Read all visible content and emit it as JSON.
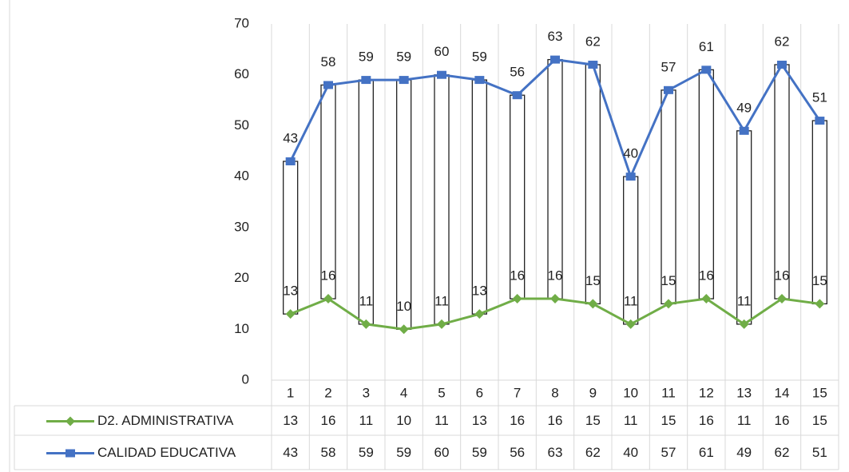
{
  "chart_data": {
    "type": "line",
    "categories": [
      "1",
      "2",
      "3",
      "4",
      "5",
      "6",
      "7",
      "8",
      "9",
      "10",
      "11",
      "12",
      "13",
      "14",
      "15"
    ],
    "series": [
      {
        "name": "D2. ADMINISTRATIVA",
        "color": "#70ad47",
        "marker": "diamond",
        "values": [
          13,
          16,
          11,
          10,
          11,
          13,
          16,
          16,
          15,
          11,
          15,
          16,
          11,
          16,
          15
        ]
      },
      {
        "name": "CALIDAD EDUCATIVA",
        "color": "#4472c4",
        "marker": "square",
        "values": [
          43,
          58,
          59,
          59,
          60,
          59,
          56,
          63,
          62,
          40,
          57,
          61,
          49,
          62,
          51
        ]
      }
    ],
    "ylim": [
      0,
      70
    ],
    "yticks": [
      0,
      10,
      20,
      30,
      40,
      50,
      60,
      70
    ],
    "grid": false,
    "data_labels": true,
    "hi_low_bars": true,
    "data_table": true
  }
}
